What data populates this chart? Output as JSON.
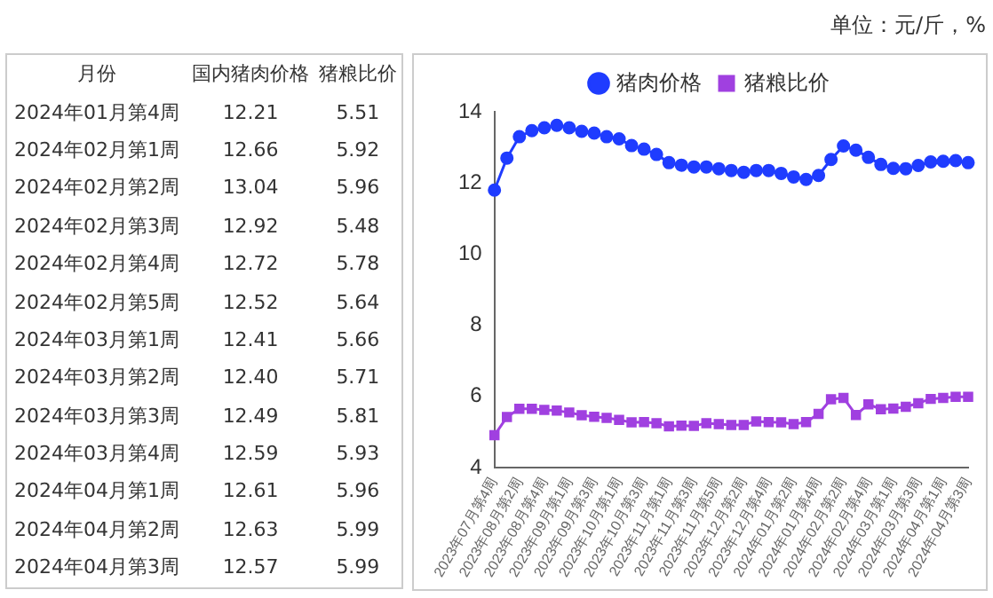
{
  "chart_data": [
    {
      "type": "other",
      "xlabel": "月份",
      "categories": [
        "2024年01月第4周",
        "2024年02月第1周",
        "2024年02月第2周",
        "2024年02月第3周",
        "2024年02月第4周",
        "2024年02月第5周",
        "2024年03月第1周",
        "2024年03月第2周",
        "2024年03月第3周",
        "2024年03月第4周",
        "2024年04月第1周",
        "2024年04月第2周",
        "2024年04月第3周"
      ],
      "series": [
        {
          "name": "国内猪肉价格",
          "values": [
            12.21,
            12.66,
            13.04,
            12.92,
            12.72,
            12.52,
            12.41,
            12.4,
            12.49,
            12.59,
            12.61,
            12.63,
            12.57
          ],
          "value_labels": [
            "12.21",
            "12.66",
            "13.04",
            "12.92",
            "12.72",
            "12.52",
            "12.41",
            "12.40",
            "12.49",
            "12.59",
            "12.61",
            "12.63",
            "12.57"
          ]
        },
        {
          "name": "猪粮比价",
          "values": [
            5.51,
            5.92,
            5.96,
            5.48,
            5.78,
            5.64,
            5.66,
            5.71,
            5.81,
            5.93,
            5.96,
            5.99,
            5.99
          ],
          "value_labels": [
            "5.51",
            "5.92",
            "5.96",
            "5.48",
            "5.78",
            "5.64",
            "5.66",
            "5.71",
            "5.81",
            "5.93",
            "5.96",
            "5.99",
            "5.99"
          ]
        }
      ]
    },
    {
      "type": "line",
      "annotations": [
        "单位：元/斤，%"
      ],
      "legend": "top",
      "ylim": [
        4,
        14
      ],
      "yticks": [
        4,
        6,
        8,
        10,
        12,
        14
      ],
      "grid": false,
      "categories": [
        "2023年07月第4周",
        null,
        "2023年08月第2周",
        null,
        "2023年08月第4周",
        null,
        "2023年09月第1周",
        null,
        "2023年09月第3周",
        null,
        "2023年10月第1周",
        null,
        "2023年10月第3周",
        null,
        "2023年11月第1周",
        null,
        "2023年11月第3周",
        null,
        "2023年11月第5周",
        null,
        "2023年12月第2周",
        null,
        "2023年12月第4周",
        null,
        "2024年01月第2周",
        null,
        "2024年01月第4周",
        null,
        "2024年02月第2周",
        null,
        "2024年02月第4周",
        null,
        "2024年03月第1周",
        null,
        "2024年03月第3周",
        null,
        "2024年04月第1周",
        null,
        "2024年04月第3周"
      ],
      "series": [
        {
          "name": "猪肉价格",
          "color": "#1f3cff",
          "marker": "circle",
          "values": [
            11.8,
            12.7,
            13.3,
            13.47,
            13.55,
            13.62,
            13.55,
            13.45,
            13.4,
            13.3,
            13.24,
            13.05,
            12.95,
            12.8,
            12.57,
            12.5,
            12.45,
            12.45,
            12.4,
            12.35,
            12.3,
            12.35,
            12.35,
            12.27,
            12.17,
            12.1,
            12.21,
            12.66,
            13.04,
            12.92,
            12.72,
            12.52,
            12.41,
            12.4,
            12.49,
            12.59,
            12.61,
            12.63,
            12.57
          ]
        },
        {
          "name": "猪粮比价",
          "color": "#a040e0",
          "marker": "square",
          "values": [
            4.91,
            5.42,
            5.65,
            5.65,
            5.62,
            5.6,
            5.55,
            5.47,
            5.43,
            5.4,
            5.34,
            5.27,
            5.28,
            5.25,
            5.16,
            5.18,
            5.17,
            5.25,
            5.22,
            5.2,
            5.2,
            5.3,
            5.28,
            5.27,
            5.22,
            5.28,
            5.51,
            5.92,
            5.96,
            5.48,
            5.78,
            5.64,
            5.66,
            5.71,
            5.81,
            5.93,
            5.96,
            5.99,
            5.99
          ]
        }
      ]
    }
  ]
}
